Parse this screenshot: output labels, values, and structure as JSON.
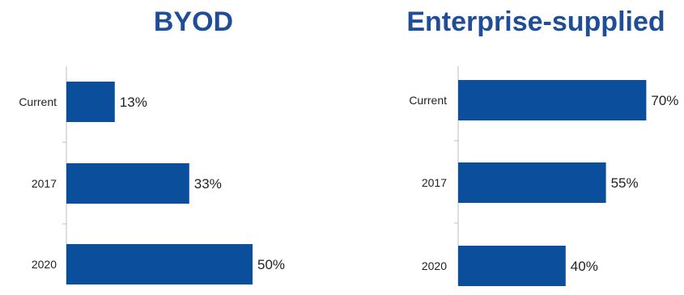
{
  "colors": {
    "bar": "#0b4f9c",
    "title": "#1f4e96",
    "axis": "#bfbfbf"
  },
  "chart_data": [
    {
      "type": "bar",
      "orientation": "horizontal",
      "title": "BYOD",
      "categories": [
        "Current",
        "2017",
        "2020"
      ],
      "values": [
        13,
        33,
        50
      ],
      "value_labels": [
        "13%",
        "33%",
        "50%"
      ],
      "xlim": [
        0,
        100
      ],
      "grid": false,
      "legend": "none"
    },
    {
      "type": "bar",
      "orientation": "horizontal",
      "title": "Enterprise-supplied",
      "categories": [
        "Current",
        "2017",
        "2020"
      ],
      "values": [
        70,
        55,
        40
      ],
      "value_labels": [
        "70%",
        "55%",
        "40%"
      ],
      "xlim": [
        0,
        100
      ],
      "grid": false,
      "legend": "none"
    }
  ]
}
